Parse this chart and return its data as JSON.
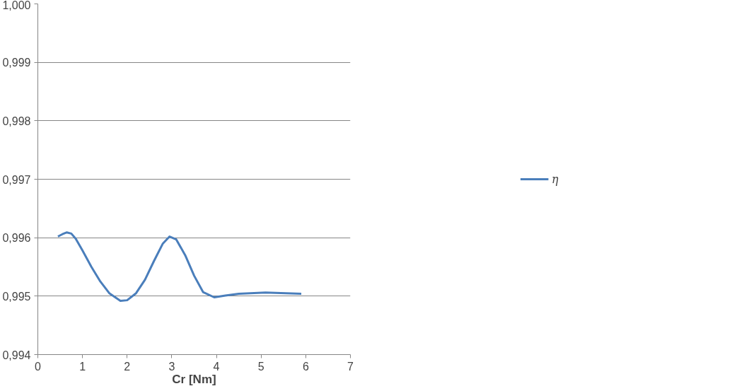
{
  "chart_data": {
    "type": "line",
    "xlabel": "Cr [Nm]",
    "x": [
      0.45,
      0.55,
      0.65,
      0.75,
      0.85,
      1.0,
      1.2,
      1.4,
      1.6,
      1.85,
      2.0,
      2.2,
      2.4,
      2.6,
      2.8,
      2.95,
      3.1,
      3.3,
      3.5,
      3.7,
      3.95,
      4.2,
      4.5,
      5.1,
      5.9
    ],
    "series": [
      {
        "name": "η",
        "color": "#4a7ebb",
        "values": [
          0.99602,
          0.99606,
          0.99609,
          0.99607,
          0.99598,
          0.99578,
          0.9955,
          0.99525,
          0.99505,
          0.99492,
          0.99493,
          0.99505,
          0.99528,
          0.9956,
          0.9959,
          0.99602,
          0.99597,
          0.9957,
          0.99535,
          0.99507,
          0.99498,
          0.99501,
          0.99504,
          0.99506,
          0.99504
        ]
      }
    ],
    "xlim": [
      0,
      7
    ],
    "xticks": [
      0,
      1,
      2,
      3,
      4,
      5,
      6,
      7
    ],
    "ylim": [
      0.994,
      1.0
    ],
    "yticks": [
      {
        "value": 0.994,
        "label": "0,994"
      },
      {
        "value": 0.995,
        "label": "0,995"
      },
      {
        "value": 0.996,
        "label": "0,996"
      },
      {
        "value": 0.997,
        "label": "0,997"
      },
      {
        "value": 0.998,
        "label": "0,998"
      },
      {
        "value": 0.999,
        "label": "0,999"
      },
      {
        "value": 1.0,
        "label": "1,000"
      }
    ],
    "grid": "y",
    "legend": "right",
    "marker": "none",
    "line_style": "solid"
  }
}
